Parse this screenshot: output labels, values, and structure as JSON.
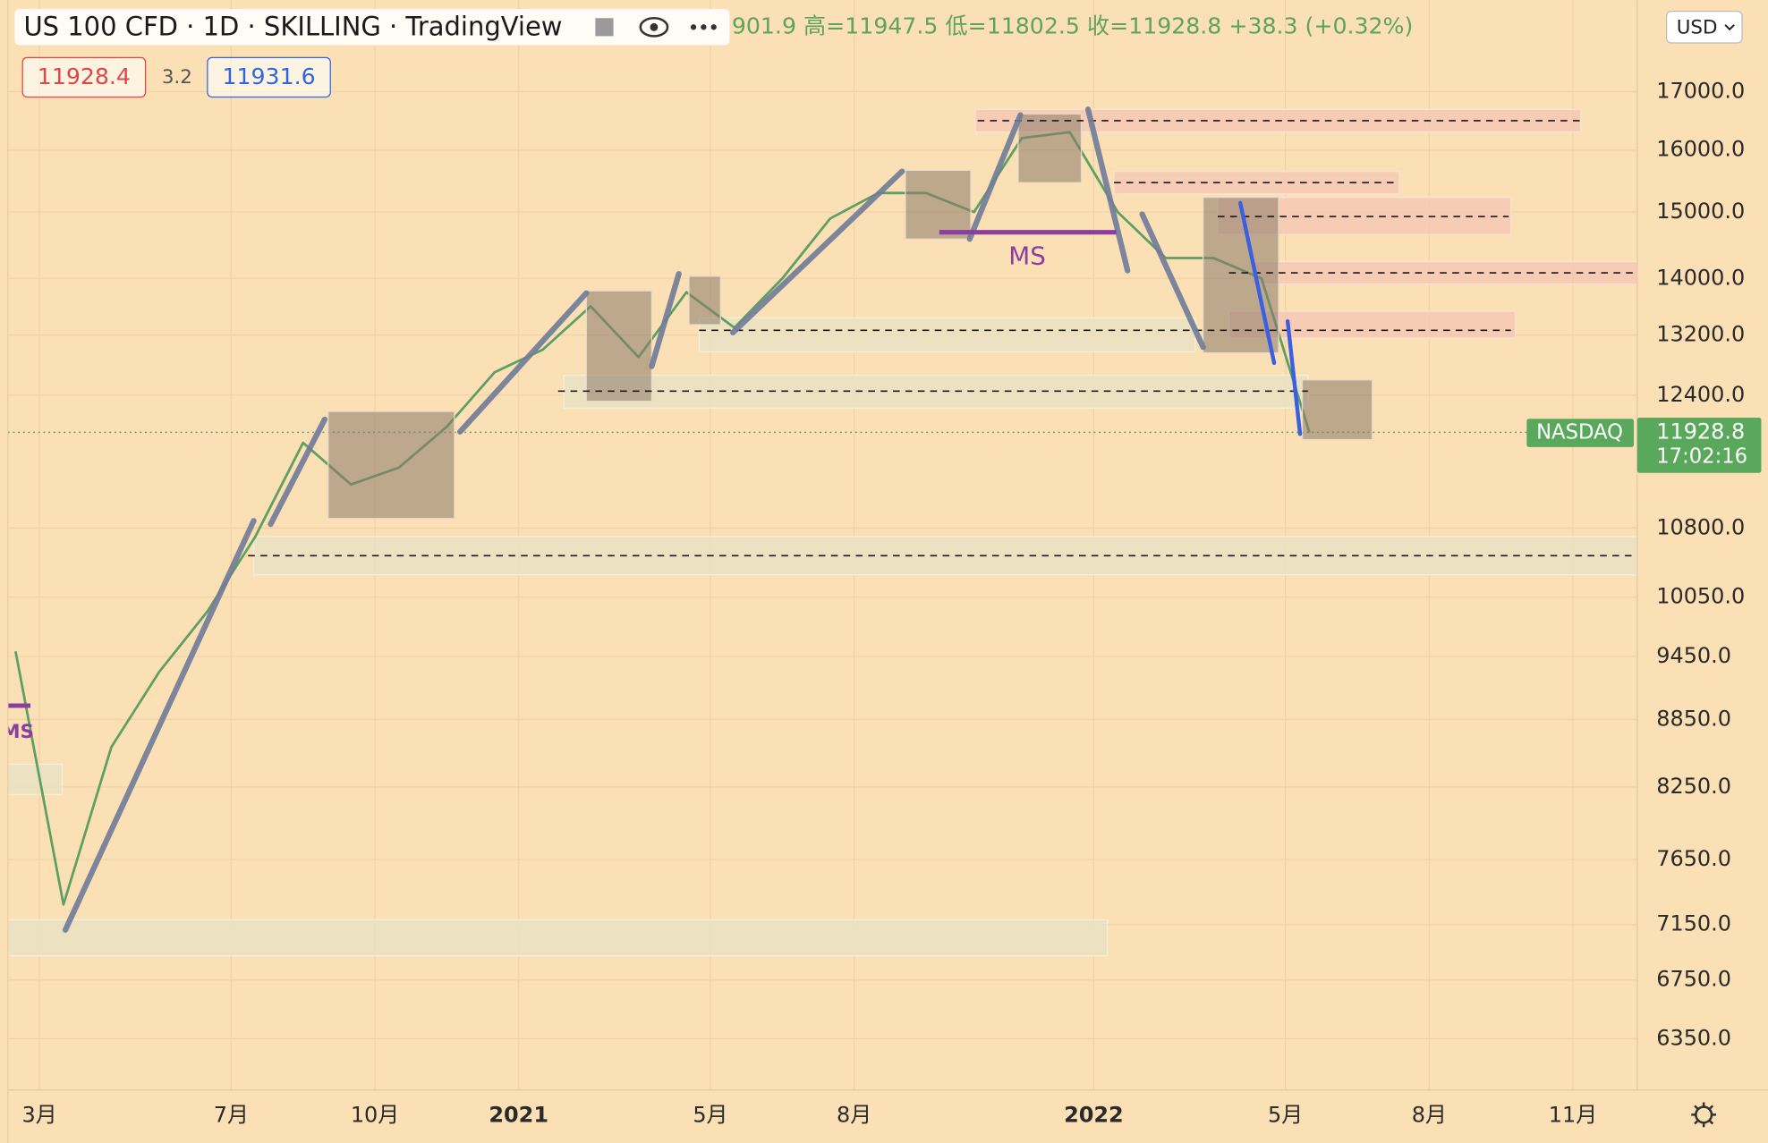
{
  "chart_data": {
    "type": "line",
    "header": {
      "title": "US 100 CFD · 1D · SKILLING · TradingView",
      "ohlc_strip": "901.9  高=11947.5  低=11802.5  收=11928.8  +38.3 (+0.32%)",
      "sell_price": "11928.4",
      "spread": "3.2",
      "buy_price": "11931.6",
      "currency": "USD"
    },
    "symbol_label": "NASDAQ",
    "countdown": "17:02:16",
    "last_value": 11928.8,
    "annotations": [
      "MS",
      "MS"
    ],
    "x": [
      "2020-02",
      "2020-03",
      "2020-04",
      "2020-05",
      "2020-06",
      "2020-07",
      "2020-08",
      "2020-09",
      "2020-10",
      "2020-11",
      "2020-12",
      "2021-01",
      "2021-02",
      "2021-03",
      "2021-04",
      "2021-05",
      "2021-06",
      "2021-07",
      "2021-08",
      "2021-09",
      "2021-10",
      "2021-11",
      "2021-12",
      "2022-01",
      "2022-02",
      "2022-03",
      "2022-04",
      "2022-05"
    ],
    "series": [
      {
        "name": "US 100 CFD",
        "color": "#5e9f62",
        "values": [
          9500,
          7300,
          8600,
          9300,
          9900,
          10700,
          11800,
          11300,
          11500,
          12000,
          12700,
          13000,
          13600,
          12900,
          13800,
          13300,
          14000,
          14900,
          15300,
          15300,
          15000,
          16200,
          16300,
          15000,
          14300,
          14300,
          14000,
          11928.8
        ]
      }
    ],
    "log_scale": true,
    "grid": true,
    "xlim": [
      "2020-02",
      "2022-12"
    ],
    "xticks": [
      {
        "value": "2020-03",
        "label": "3月"
      },
      {
        "value": "2020-07",
        "label": "7月"
      },
      {
        "value": "2020-10",
        "label": "10月"
      },
      {
        "value": "2021-01",
        "label": "2021"
      },
      {
        "value": "2021-05",
        "label": "5月"
      },
      {
        "value": "2021-08",
        "label": "8月"
      },
      {
        "value": "2022-01",
        "label": "2022"
      },
      {
        "value": "2022-05",
        "label": "5月"
      },
      {
        "value": "2022-08",
        "label": "8月"
      },
      {
        "value": "2022-11",
        "label": "11月"
      }
    ],
    "ylim": [
      6020,
      18700
    ],
    "yticks": [
      {
        "value": 17000,
        "label": "17000.0"
      },
      {
        "value": 16000,
        "label": "16000.0"
      },
      {
        "value": 15000,
        "label": "15000.0"
      },
      {
        "value": 14000,
        "label": "14000.0"
      },
      {
        "value": 13200,
        "label": "13200.0"
      },
      {
        "value": 12400,
        "label": "12400.0"
      },
      {
        "value": 10800,
        "label": "10800.0"
      },
      {
        "value": 10050,
        "label": "10050.0"
      },
      {
        "value": 9450,
        "label": "9450.0"
      },
      {
        "value": 8850,
        "label": "8850.0"
      },
      {
        "value": 8250,
        "label": "8250.0"
      },
      {
        "value": 7650,
        "label": "7650.0"
      },
      {
        "value": 7150,
        "label": "7150.0"
      },
      {
        "value": 6750,
        "label": "6750.0"
      },
      {
        "value": 6350,
        "label": "6350.0"
      }
    ]
  }
}
